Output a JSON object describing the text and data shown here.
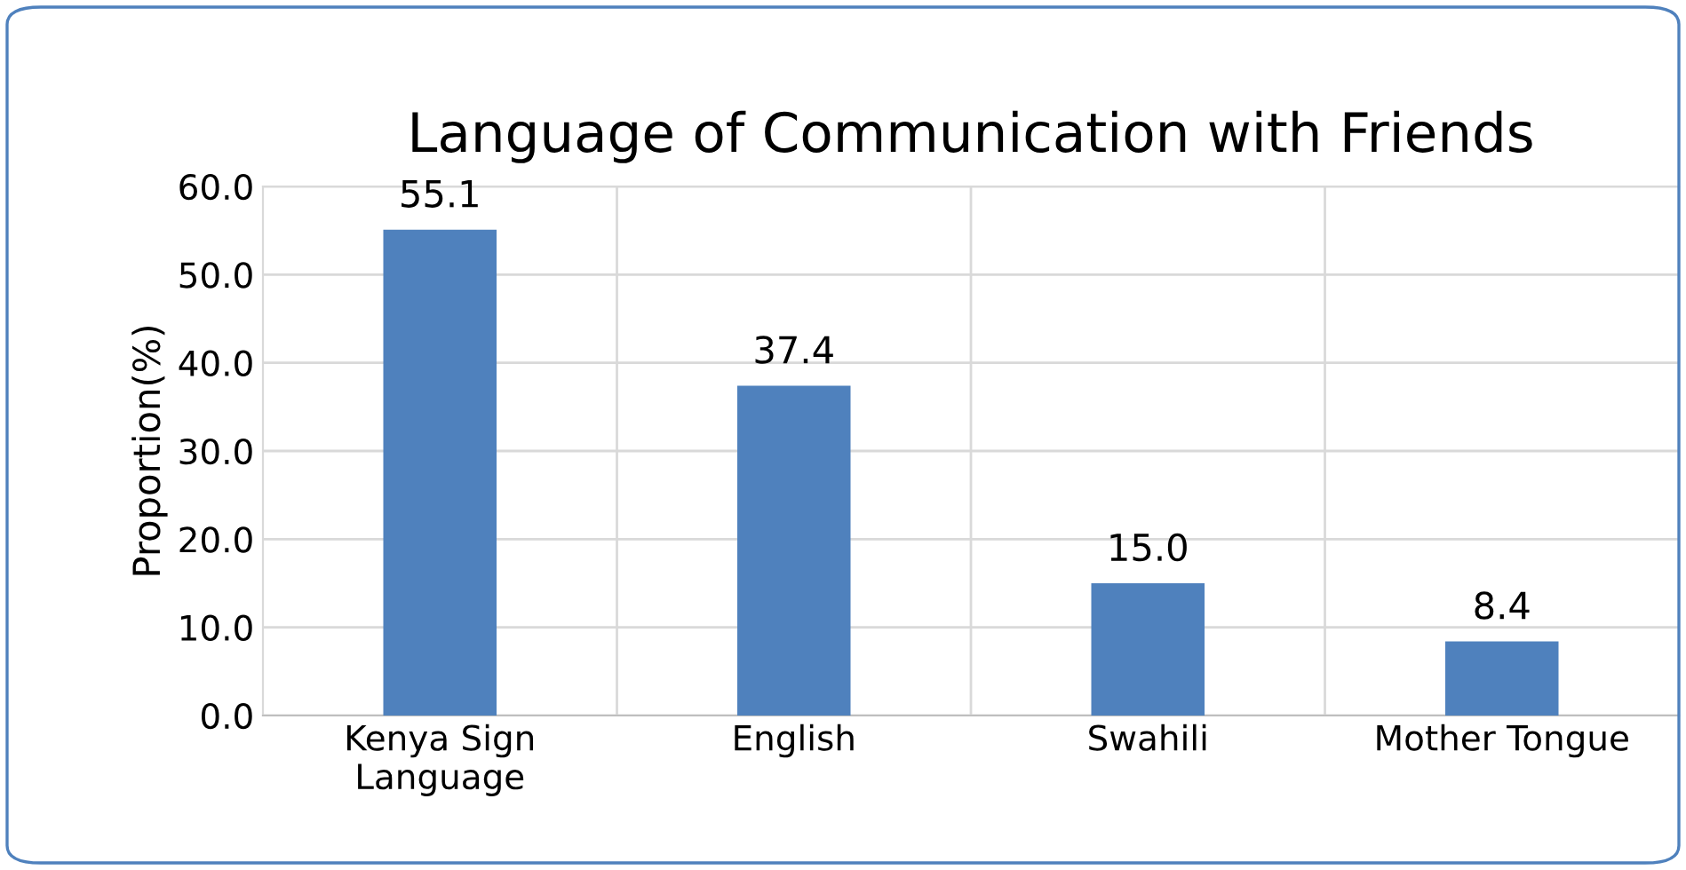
{
  "chart_data": {
    "type": "bar",
    "title": "Language of Communication with Friends",
    "ylabel": "Proportion(%)",
    "categories": [
      "Kenya Sign\nLanguage",
      "English",
      "Swahili",
      "Mother Tongue"
    ],
    "values": [
      55.1,
      37.4,
      15.0,
      8.4
    ],
    "color": "#4f81bd",
    "value_labels": [
      "55.1",
      "37.4",
      "15.0",
      "8.4"
    ],
    "ylim": [
      0,
      60
    ],
    "yticks": [
      {
        "value": 0,
        "label": "0.0"
      },
      {
        "value": 10,
        "label": "10.0"
      },
      {
        "value": 20,
        "label": "20.0"
      },
      {
        "value": 30,
        "label": "30.0"
      },
      {
        "value": 40,
        "label": "40.0"
      },
      {
        "value": 50,
        "label": "50.0"
      },
      {
        "value": 60,
        "label": "60.0"
      }
    ],
    "grid": true
  }
}
